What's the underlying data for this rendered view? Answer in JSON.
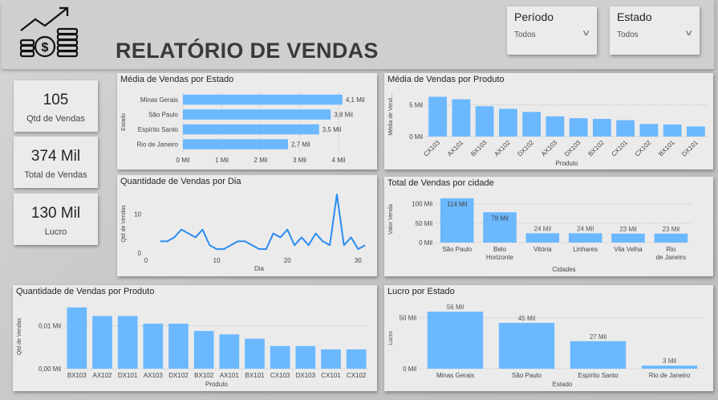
{
  "header": {
    "title": "RELATÓRIO DE VENDAS",
    "logo_icon": "money-growth-icon"
  },
  "filters": [
    {
      "label": "Período",
      "value": "Todos"
    },
    {
      "label": "Estado",
      "value": "Todos"
    }
  ],
  "kpis": [
    {
      "value": "105",
      "label": "Qtd de Vendas"
    },
    {
      "value": "374 Mil",
      "label": "Total de Vendas"
    },
    {
      "value": "130 Mil",
      "label": "Lucro"
    }
  ],
  "colors": {
    "bar": "#6bb8ff",
    "line": "#2b8cf0"
  },
  "chart_data": [
    {
      "id": "media_estado",
      "type": "bar",
      "orientation": "horizontal",
      "title": "Média de Vendas por Estado",
      "ylabel": "Estado",
      "categories": [
        "Minas Gerais",
        "São Paulo",
        "Espírito Santo",
        "Rio de Janeiro"
      ],
      "values": [
        4.1,
        3.8,
        3.5,
        2.7
      ],
      "data_labels": [
        "4,1 Mil",
        "3,8 Mil",
        "3,5 Mil",
        "2,7 Mil"
      ],
      "xlim": [
        0,
        4
      ],
      "ticks": [
        "0 Mil",
        "1 Mil",
        "2 Mil",
        "3 Mil",
        "4 Mil"
      ]
    },
    {
      "id": "media_produto",
      "type": "bar",
      "title": "Média de Vendas por Produto",
      "xlabel": "Produto",
      "ylabel": "Média de Vend...",
      "categories": [
        "CX103",
        "AX101",
        "BX103",
        "AX102",
        "DX102",
        "AX103",
        "DX103",
        "BX102",
        "CX101",
        "CX102",
        "BX101",
        "DX101"
      ],
      "values": [
        6.3,
        5.9,
        4.8,
        4.4,
        3.9,
        3.2,
        2.9,
        2.8,
        2.6,
        2.0,
        1.9,
        1.6
      ],
      "ylim": [
        0,
        7
      ],
      "ticks": [
        "0 Mil",
        "5 Mil"
      ]
    },
    {
      "id": "qtd_dia",
      "type": "line",
      "title": "Quantidade de Vendas por Dia",
      "xlabel": "Dia",
      "ylabel": "Qtd de Vendas",
      "x": [
        2,
        3,
        4,
        5,
        6,
        7,
        8,
        9,
        10,
        11,
        12,
        13,
        14,
        15,
        16,
        17,
        18,
        19,
        20,
        21,
        22,
        23,
        24,
        25,
        26,
        27,
        28,
        29,
        30,
        31
      ],
      "y": [
        3,
        3,
        4,
        6,
        5,
        4,
        6,
        2,
        1,
        1,
        2,
        3,
        3,
        2,
        1,
        1,
        5,
        4,
        6,
        2,
        4,
        2,
        5,
        3,
        2,
        15,
        2,
        4,
        1,
        2
      ],
      "xlim": [
        0,
        32
      ],
      "ylim": [
        0,
        15
      ],
      "ticks_x": [
        "0",
        "10",
        "20",
        "30"
      ],
      "ticks_y": [
        "0",
        "10"
      ]
    },
    {
      "id": "total_cidade",
      "type": "bar",
      "title": "Total de Vendas por cidade",
      "xlabel": "Cidades",
      "ylabel": "Valor Venda",
      "categories": [
        "São Paulo",
        "Belo Horizonte",
        "Vitória",
        "Linhares",
        "Vila Velha",
        "Rio de Janeiro"
      ],
      "values": [
        114,
        78,
        24,
        24,
        23,
        23
      ],
      "data_labels": [
        "114 Mil",
        "78 Mil",
        "24 Mil",
        "24 Mil",
        "23 Mil",
        "23 Mil"
      ],
      "ylim": [
        0,
        120
      ],
      "ticks": [
        "0 Mil",
        "50 Mil",
        "100 Mil"
      ]
    },
    {
      "id": "qtd_produto",
      "type": "bar",
      "title": "Quantidade de Vendas por Produto",
      "xlabel": "Produto",
      "ylabel": "Qtd de Vendas",
      "categories": [
        "BX103",
        "AX102",
        "DX101",
        "AX103",
        "DX102",
        "BX102",
        "AX101",
        "BX101",
        "CX103",
        "DX103",
        "CX101",
        "CX102"
      ],
      "values": [
        0.0143,
        0.0123,
        0.0123,
        0.0105,
        0.0105,
        0.0088,
        0.008,
        0.007,
        0.0053,
        0.0053,
        0.0045,
        0.0045
      ],
      "ylim": [
        0,
        0.015
      ],
      "ticks": [
        "0,00 Mil",
        "0,01 Mil"
      ]
    },
    {
      "id": "lucro_estado",
      "type": "bar",
      "title": "Lucro por Estado",
      "xlabel": "Estado",
      "ylabel": "Lucro",
      "categories": [
        "Minas Gerais",
        "São Paulo",
        "Espírito Santo",
        "Rio de Janeiro"
      ],
      "values": [
        56,
        45,
        27,
        3
      ],
      "data_labels": [
        "56 Mil",
        "45 Mil",
        "27 Mil",
        "3 Mil"
      ],
      "ylim": [
        0,
        60
      ],
      "ticks": [
        "0 Mil",
        "50 Mil"
      ]
    }
  ]
}
